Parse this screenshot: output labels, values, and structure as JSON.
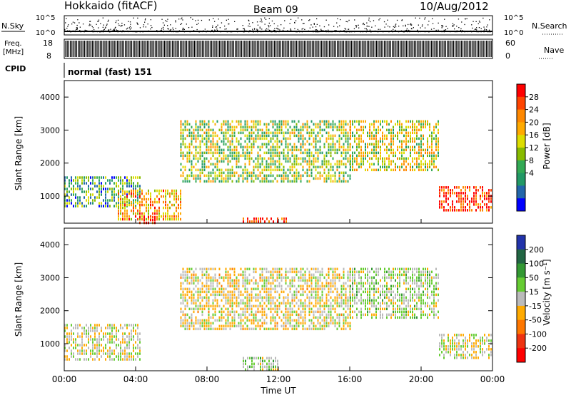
{
  "header": {
    "station": "Hokkaido (fitACF)",
    "beam": "Beam 09",
    "date": "10/Aug/2012"
  },
  "nsky_strip": {
    "left_label": "N.Sky",
    "right_label": "N.Search",
    "left_ticks": [
      "10^5",
      "10^0"
    ],
    "right_ticks": [
      "10^5",
      "10^0"
    ]
  },
  "freq_strip": {
    "left_label_1": "Freq.",
    "left_label_2": "[MHz]",
    "left_ticks": [
      "18",
      "8"
    ],
    "right_ticks": [
      "60",
      "0"
    ],
    "right_label": "Nave"
  },
  "cpid_strip": {
    "label": "CPID",
    "value": "normal (fast) 151"
  },
  "power_panel": {
    "ylabel": "Slant Range [km]",
    "yticks": [
      "4000",
      "3000",
      "2000",
      "1000"
    ],
    "colorbar_label": "Power [dB]",
    "colorbar_ticks": [
      "28",
      "24",
      "20",
      "16",
      "12",
      "8",
      "4"
    ],
    "colorbar_colors": [
      "#ff0000",
      "#ff4400",
      "#ff8800",
      "#ffaa00",
      "#dddd00",
      "#88bb00",
      "#33aa55",
      "#229966",
      "#2266aa",
      "#0000ff"
    ]
  },
  "velocity_panel": {
    "ylabel": "Slant Range [km]",
    "yticks": [
      "4000",
      "3000",
      "2000",
      "1000"
    ],
    "colorbar_label": "Velocity [m s⁻¹]",
    "colorbar_ticks": [
      "200",
      "100",
      "50",
      "15",
      "-15",
      "-50",
      "-100",
      "-200"
    ],
    "colorbar_colors": [
      "#2233aa",
      "#226644",
      "#339933",
      "#66cc33",
      "#bbbbbb",
      "#ffaa00",
      "#ff7700",
      "#ee3311",
      "#ff0000"
    ]
  },
  "xaxis": {
    "label": "Time UT",
    "ticks": [
      "00:00",
      "04:00",
      "08:00",
      "12:00",
      "16:00",
      "20:00",
      "00:00"
    ]
  },
  "chart_data": {
    "type": "heatmap",
    "title": "Hokkaido (fitACF)",
    "x_range_hours": [
      0,
      24
    ],
    "y_range_km": [
      180,
      4500
    ],
    "panels": [
      {
        "quantity": "Power",
        "unit": "dB",
        "color_range": [
          0,
          30
        ],
        "regions": [
          {
            "t0": 0.0,
            "t1": 4.3,
            "r0": 700,
            "r1": 1600,
            "level": 10
          },
          {
            "t0": 3.0,
            "t1": 6.5,
            "r0": 250,
            "r1": 1200,
            "level": 20
          },
          {
            "t0": 4.2,
            "t1": 5.2,
            "r0": 200,
            "r1": 400,
            "level": 29
          },
          {
            "t0": 6.5,
            "t1": 16.0,
            "r0": 1400,
            "r1": 3300,
            "level": 14
          },
          {
            "t0": 10.0,
            "t1": 12.5,
            "r0": 200,
            "r1": 350,
            "level": 27
          },
          {
            "t0": 16.0,
            "t1": 21.0,
            "r0": 1800,
            "r1": 3300,
            "level": 16
          },
          {
            "t0": 21.0,
            "t1": 24.0,
            "r0": 600,
            "r1": 1300,
            "level": 28
          }
        ]
      },
      {
        "quantity": "Velocity",
        "unit": "m s-1",
        "color_range": [
          -200,
          200
        ],
        "regions": [
          {
            "t0": 0.0,
            "t1": 4.3,
            "r0": 500,
            "r1": 1600,
            "level": 0
          },
          {
            "t0": 6.5,
            "t1": 16.0,
            "r0": 1400,
            "r1": 3300,
            "level": -10
          },
          {
            "t0": 10.0,
            "t1": 12.0,
            "r0": 200,
            "r1": 600,
            "level": 30
          },
          {
            "t0": 16.0,
            "t1": 21.0,
            "r0": 1800,
            "r1": 3300,
            "level": 20
          },
          {
            "t0": 21.0,
            "t1": 24.0,
            "r0": 600,
            "r1": 1300,
            "level": 0
          }
        ]
      }
    ]
  }
}
